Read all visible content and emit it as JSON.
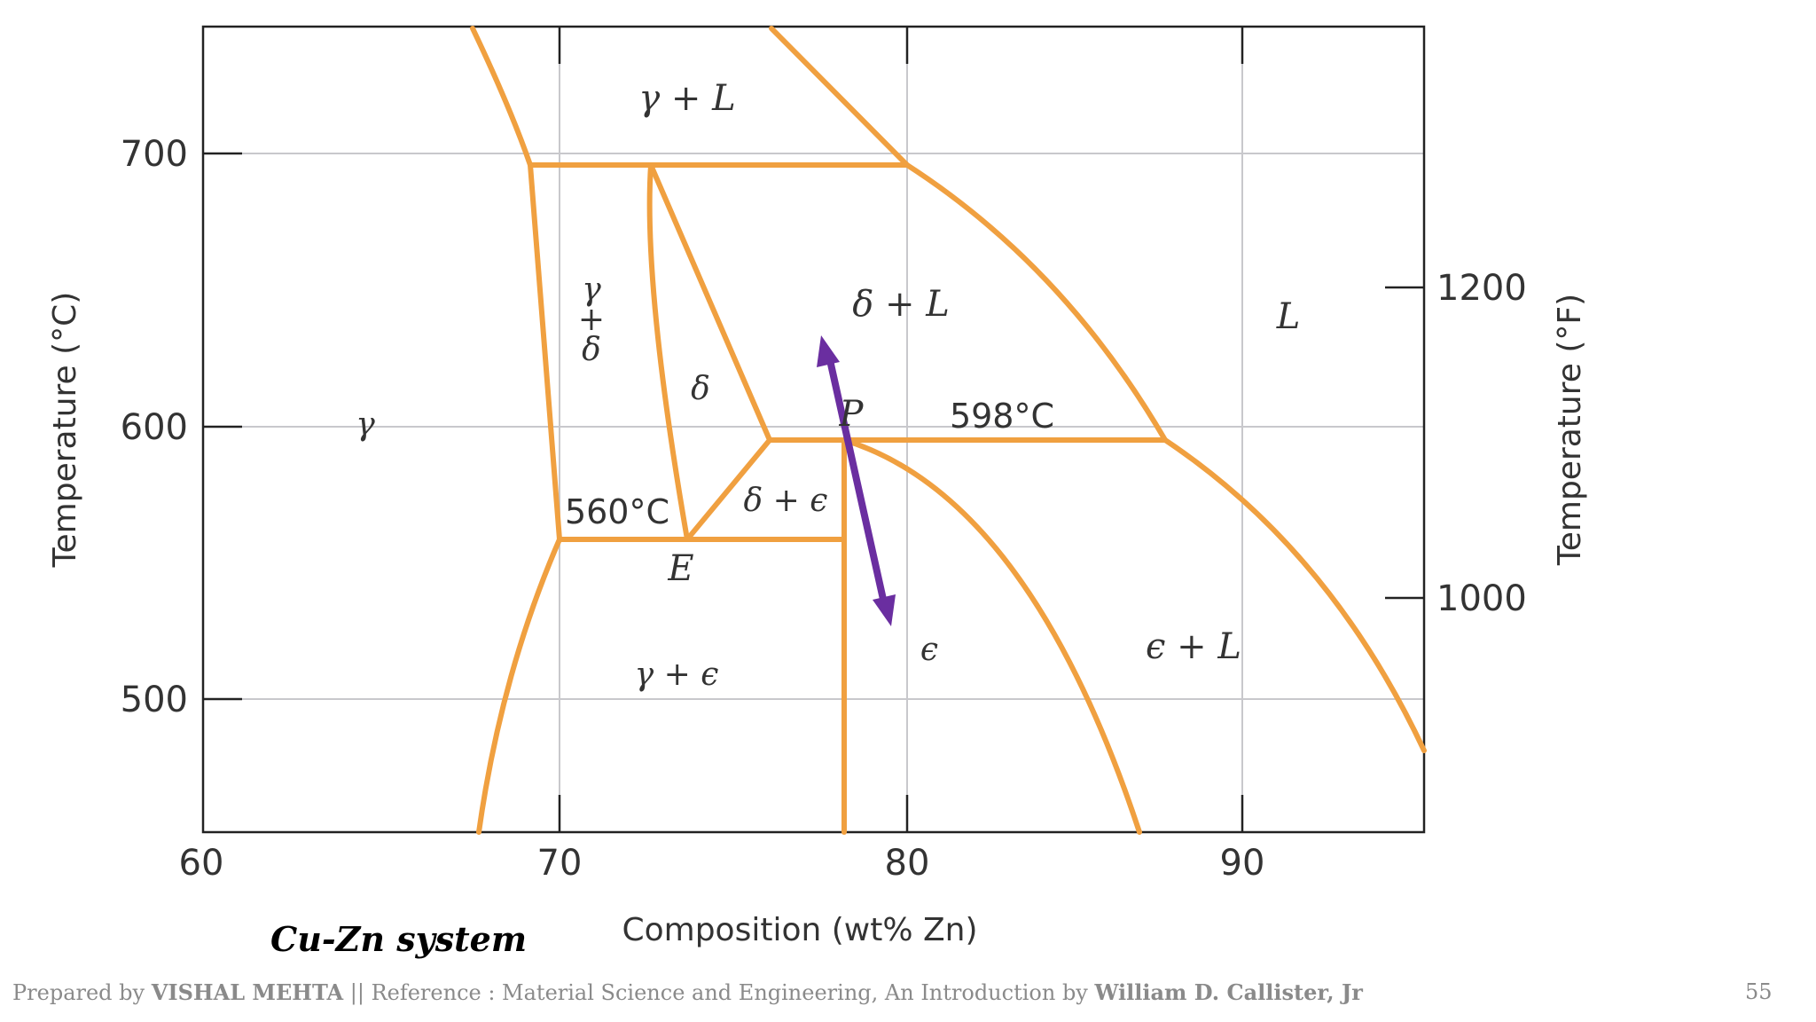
{
  "diagram": {
    "x_ticks": [
      "60",
      "70",
      "80",
      "90"
    ],
    "y_ticks_left": [
      "700",
      "600",
      "500"
    ],
    "y_ticks_right": [
      "1200",
      "1000"
    ],
    "x_label": "Composition (wt% Zn)",
    "y_label_left": "Temperature (°C)",
    "y_label_right": "Temperature (°F)",
    "phase_labels": {
      "gamma_plus_L": "γ + L",
      "delta_plus_L": "δ + L",
      "L": "L",
      "gamma_plus_delta": [
        "γ",
        "+",
        "δ"
      ],
      "delta": "δ",
      "gamma": "γ",
      "delta_plus_epsilon": "δ + ϵ",
      "epsilon": "ϵ",
      "epsilon_plus_L": "ϵ + L",
      "gamma_plus_epsilon": "γ + ϵ"
    },
    "points": {
      "P": "P",
      "E": "E"
    },
    "annotations": {
      "eutectoid": "560°C",
      "peritectic": "598°C"
    },
    "colors": {
      "phase_lines": "#f0a040",
      "arrow": "#6a2ea0",
      "grid": "#c8c8cc"
    }
  },
  "caption": "Cu-Zn system",
  "footer": {
    "prepared_by_prefix": "Prepared by ",
    "author": "VISHAL MEHTA",
    "reference_text": " || Reference : Material Science and Engineering, An Introduction by ",
    "reference_author": "William D. Callister, Jr"
  },
  "page_number": "55"
}
